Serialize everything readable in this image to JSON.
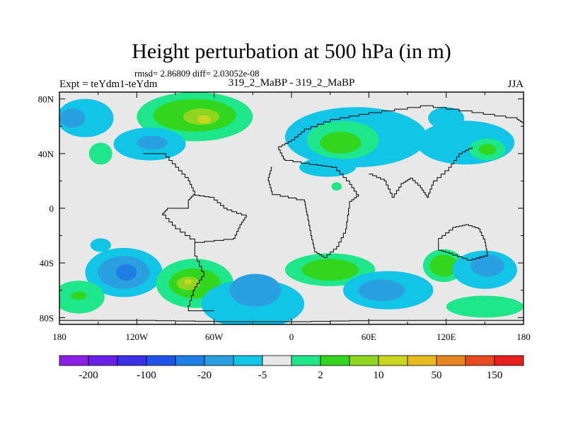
{
  "chart_data": {
    "type": "heatmap",
    "title": "Height perturbation at 500 hPa (in m)",
    "stats_line": "rmsd= 2.86809 diff= 2.03052e-08",
    "left_label": "Expt = teYdm1-teYdm",
    "center_label": "319_2_MaBP - 319_2_MaBP",
    "right_label": "JJA",
    "x_ticks": [
      {
        "lon": -180,
        "label": "180"
      },
      {
        "lon": -120,
        "label": "120W"
      },
      {
        "lon": -60,
        "label": "60W"
      },
      {
        "lon": 0,
        "label": "0"
      },
      {
        "lon": 60,
        "label": "60E"
      },
      {
        "lon": 120,
        "label": "120E"
      },
      {
        "lon": 180,
        "label": "180"
      }
    ],
    "y_ticks": [
      {
        "lat": 80,
        "label": "80N"
      },
      {
        "lat": 40,
        "label": "40N"
      },
      {
        "lat": 0,
        "label": "0"
      },
      {
        "lat": -40,
        "label": "40S"
      },
      {
        "lat": -80,
        "label": "80S"
      }
    ],
    "xlim": [
      -180,
      180
    ],
    "ylim": [
      -85,
      85
    ],
    "colorbar": {
      "colors": [
        "#8c1fe6",
        "#6a1fe6",
        "#3d2fe6",
        "#1f52e6",
        "#1f7de6",
        "#2aa0e0",
        "#12c5e6",
        "#e8e8e8",
        "#1fe68a",
        "#33d61f",
        "#8ed61f",
        "#c8d61f",
        "#e6ba1f",
        "#e6841f",
        "#e6491f",
        "#e61f1f"
      ],
      "labels": [
        {
          "boundary": 1,
          "text": "-200"
        },
        {
          "boundary": 3,
          "text": "-100"
        },
        {
          "boundary": 5,
          "text": "-20"
        },
        {
          "boundary": 7,
          "text": "-5"
        },
        {
          "boundary": 9,
          "text": "2"
        },
        {
          "boundary": 11,
          "text": "10"
        },
        {
          "boundary": 13,
          "text": "50"
        },
        {
          "boundary": 15,
          "text": "150"
        }
      ]
    },
    "field_colors": {
      "background": "#e8e8e8",
      "neg1": "#12c5e6",
      "neg2": "#2aa0e0",
      "neg3": "#1f7de6",
      "pos1": "#1fe68a",
      "pos2": "#33d61f",
      "pos3": "#8ed61f",
      "pos4": "#c8d61f"
    },
    "contour_regions": [
      {
        "id": "np-pac-neg",
        "level": "neg1",
        "lon": -160,
        "lat": 66,
        "rx": 22,
        "ry": 14
      },
      {
        "id": "np-pac-neg-core",
        "level": "neg2",
        "lon": -170,
        "lat": 66,
        "rx": 10,
        "ry": 7
      },
      {
        "id": "np-am-pos",
        "level": "pos1",
        "lon": -75,
        "lat": 67,
        "rx": 45,
        "ry": 18
      },
      {
        "id": "np-am-pos2",
        "level": "pos2",
        "lon": -75,
        "lat": 68,
        "rx": 32,
        "ry": 12
      },
      {
        "id": "np-am-pos3",
        "level": "pos3",
        "lon": -70,
        "lat": 67,
        "rx": 14,
        "ry": 6
      },
      {
        "id": "np-am-pos4",
        "level": "pos4",
        "lon": -68,
        "lat": 65,
        "rx": 5,
        "ry": 3
      },
      {
        "id": "natl-neg",
        "level": "neg1",
        "lon": -110,
        "lat": 47,
        "rx": 28,
        "ry": 12
      },
      {
        "id": "natl-neg2",
        "level": "neg2",
        "lon": -108,
        "lat": 48,
        "rx": 12,
        "ry": 5
      },
      {
        "id": "atl-pos",
        "level": "pos1",
        "lon": -148,
        "lat": 40,
        "rx": 9,
        "ry": 8
      },
      {
        "id": "eu-neg",
        "level": "neg1",
        "lon": 50,
        "lat": 52,
        "rx": 55,
        "ry": 22
      },
      {
        "id": "eu-pos",
        "level": "pos1",
        "lon": 40,
        "lat": 50,
        "rx": 28,
        "ry": 14
      },
      {
        "id": "eu-pos2",
        "level": "pos2",
        "lon": 38,
        "lat": 48,
        "rx": 16,
        "ry": 8
      },
      {
        "id": "asia-neg",
        "level": "neg1",
        "lon": 135,
        "lat": 48,
        "rx": 38,
        "ry": 16
      },
      {
        "id": "asia-pos",
        "level": "pos1",
        "lon": 152,
        "lat": 43,
        "rx": 14,
        "ry": 8
      },
      {
        "id": "asia-pos2",
        "level": "pos2",
        "lon": 152,
        "lat": 43,
        "rx": 7,
        "ry": 4
      },
      {
        "id": "nepac-neg",
        "level": "neg1",
        "lon": 120,
        "lat": 66,
        "rx": 14,
        "ry": 8
      },
      {
        "id": "afr-neg",
        "level": "neg1",
        "lon": 28,
        "lat": 30,
        "rx": 22,
        "ry": 7
      },
      {
        "id": "eq-pos",
        "level": "pos1",
        "lon": 35,
        "lat": 16,
        "rx": 4,
        "ry": 3
      },
      {
        "id": "sp-neg-1",
        "level": "neg1",
        "lon": -130,
        "lat": -47,
        "rx": 30,
        "ry": 18
      },
      {
        "id": "sp-neg-2",
        "level": "neg2",
        "lon": -130,
        "lat": -47,
        "rx": 20,
        "ry": 12
      },
      {
        "id": "sp-neg-3",
        "level": "neg3",
        "lon": -128,
        "lat": -47,
        "rx": 8,
        "ry": 6
      },
      {
        "id": "sa-pos",
        "level": "pos1",
        "lon": -75,
        "lat": -55,
        "rx": 30,
        "ry": 18
      },
      {
        "id": "sa-pos2",
        "level": "pos2",
        "lon": -75,
        "lat": -55,
        "rx": 20,
        "ry": 11
      },
      {
        "id": "sa-pos3",
        "level": "pos3",
        "lon": -80,
        "lat": -55,
        "rx": 9,
        "ry": 5
      },
      {
        "id": "sa-pos4",
        "level": "pos4",
        "lon": -80,
        "lat": -54,
        "rx": 3,
        "ry": 2
      },
      {
        "id": "satl-neg",
        "level": "neg1",
        "lon": -30,
        "lat": -70,
        "rx": 40,
        "ry": 18
      },
      {
        "id": "satl-neg2",
        "level": "neg2",
        "lon": -28,
        "lat": -60,
        "rx": 20,
        "ry": 12
      },
      {
        "id": "sio-pos",
        "level": "pos1",
        "lon": 30,
        "lat": -45,
        "rx": 35,
        "ry": 12
      },
      {
        "id": "sio-pos2",
        "level": "pos2",
        "lon": 30,
        "lat": -45,
        "rx": 22,
        "ry": 8
      },
      {
        "id": "sio-neg",
        "level": "neg1",
        "lon": 75,
        "lat": -60,
        "rx": 35,
        "ry": 14
      },
      {
        "id": "sio-neg2",
        "level": "neg2",
        "lon": 70,
        "lat": -60,
        "rx": 18,
        "ry": 8
      },
      {
        "id": "aus-pos",
        "level": "pos1",
        "lon": 118,
        "lat": -42,
        "rx": 16,
        "ry": 12
      },
      {
        "id": "aus-pos2",
        "level": "pos2",
        "lon": 118,
        "lat": -42,
        "rx": 11,
        "ry": 8
      },
      {
        "id": "spac-neg",
        "level": "neg1",
        "lon": 150,
        "lat": -45,
        "rx": 25,
        "ry": 14
      },
      {
        "id": "spac-neg2",
        "level": "neg2",
        "lon": 152,
        "lat": -42,
        "rx": 13,
        "ry": 8
      },
      {
        "id": "south-pos-right",
        "level": "pos1",
        "lon": 150,
        "lat": -72,
        "rx": 30,
        "ry": 8
      },
      {
        "id": "south-pos-left",
        "level": "pos1",
        "lon": -165,
        "lat": -65,
        "rx": 20,
        "ry": 12
      },
      {
        "id": "south-pos-left2",
        "level": "pos2",
        "lon": -165,
        "lat": -64,
        "rx": 6,
        "ry": 3
      },
      {
        "id": "nw-pac-blob",
        "level": "neg1",
        "lon": -148,
        "lat": -27,
        "rx": 8,
        "ry": 5
      }
    ],
    "coastlines": [
      {
        "id": "eurasia-africa-outline",
        "points": [
          [
            -115,
            40
          ],
          [
            -100,
            40
          ],
          [
            -90,
            30
          ],
          [
            -80,
            20
          ],
          [
            -75,
            10
          ],
          [
            -80,
            5
          ],
          [
            -80,
            0
          ],
          [
            -95,
            0
          ],
          [
            -100,
            -5
          ],
          [
            -90,
            -15
          ],
          [
            -75,
            -25
          ],
          [
            -75,
            -35
          ],
          [
            -68,
            -50
          ],
          [
            -75,
            -60
          ],
          [
            -80,
            -75
          ],
          [
            -60,
            -75
          ]
        ]
      },
      {
        "id": "africa-coast",
        "points": [
          [
            -15,
            30
          ],
          [
            -18,
            20
          ],
          [
            -15,
            10
          ],
          [
            10,
            5
          ],
          [
            12,
            -5
          ],
          [
            15,
            -20
          ],
          [
            18,
            -32
          ],
          [
            25,
            -36
          ],
          [
            35,
            -28
          ],
          [
            42,
            -15
          ],
          [
            45,
            5
          ],
          [
            52,
            10
          ],
          [
            45,
            20
          ],
          [
            35,
            30
          ],
          [
            20,
            32
          ],
          [
            -5,
            36
          ]
        ]
      },
      {
        "id": "asia-coast",
        "points": [
          [
            -5,
            36
          ],
          [
            -10,
            45
          ],
          [
            0,
            50
          ],
          [
            10,
            58
          ],
          [
            30,
            65
          ],
          [
            60,
            70
          ],
          [
            100,
            75
          ],
          [
            140,
            70
          ],
          [
            175,
            65
          ],
          [
            180,
            62
          ]
        ]
      },
      {
        "id": "india",
        "points": [
          [
            60,
            25
          ],
          [
            72,
            20
          ],
          [
            78,
            8
          ],
          [
            85,
            18
          ],
          [
            92,
            22
          ],
          [
            100,
            15
          ],
          [
            105,
            8
          ],
          [
            110,
            20
          ],
          [
            122,
            30
          ],
          [
            130,
            40
          ],
          [
            140,
            45
          ]
        ]
      },
      {
        "id": "australia",
        "points": [
          [
            114,
            -22
          ],
          [
            125,
            -14
          ],
          [
            135,
            -12
          ],
          [
            145,
            -15
          ],
          [
            150,
            -25
          ],
          [
            152,
            -35
          ],
          [
            140,
            -38
          ],
          [
            125,
            -33
          ],
          [
            114,
            -30
          ],
          [
            114,
            -22
          ]
        ]
      },
      {
        "id": "south-ocean-boundary",
        "points": [
          [
            -180,
            -82
          ],
          [
            -120,
            -82
          ],
          [
            -60,
            -83
          ],
          [
            0,
            -83
          ],
          [
            60,
            -82
          ],
          [
            120,
            -82
          ],
          [
            180,
            -82
          ]
        ]
      },
      {
        "id": "sa-east",
        "points": [
          [
            -75,
            -25
          ],
          [
            -45,
            -22
          ],
          [
            -40,
            -12
          ],
          [
            -35,
            -5
          ],
          [
            -50,
            0
          ],
          [
            -60,
            8
          ],
          [
            -75,
            10
          ]
        ]
      }
    ]
  }
}
